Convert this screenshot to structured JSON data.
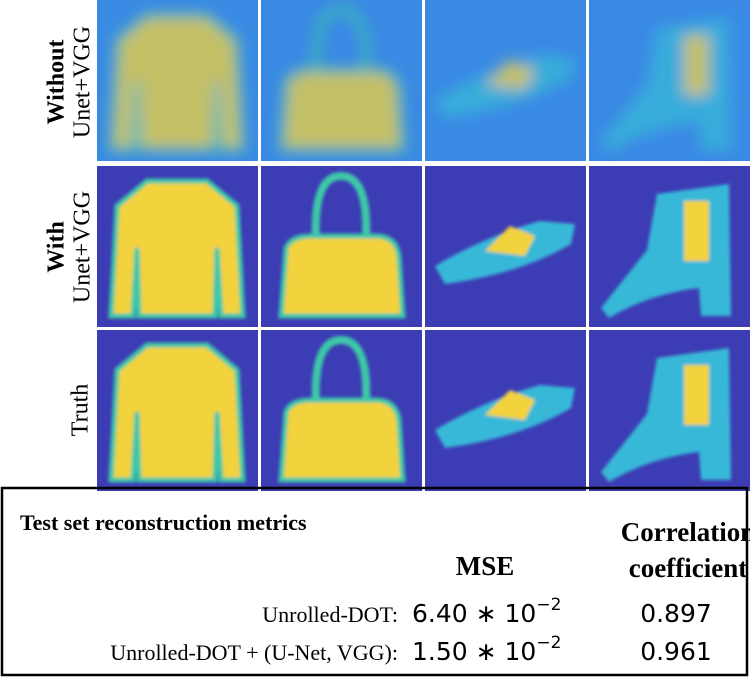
{
  "figure": {
    "row_labels": [
      {
        "bold": "Without",
        "normal": "Unet+VGG"
      },
      {
        "bold": "With",
        "normal": "Unet+VGG"
      },
      {
        "normal": "Truth"
      }
    ]
  },
  "table": {
    "title": "Test set reconstruction metrics",
    "headers": {
      "mse": "MSE",
      "correlation": [
        "Correlation",
        "coefficient"
      ]
    },
    "rows": [
      {
        "method": "Unrolled-DOT:",
        "mse": {
          "base": "6.40 ∗ 10",
          "exponent": "−2"
        },
        "correlation": "0.897"
      },
      {
        "method": "Unrolled-DOT + (U-Net, VGG):",
        "mse": {
          "base": "1.50 ∗ 10",
          "exponent": "−2"
        },
        "correlation": "0.961"
      }
    ]
  }
}
